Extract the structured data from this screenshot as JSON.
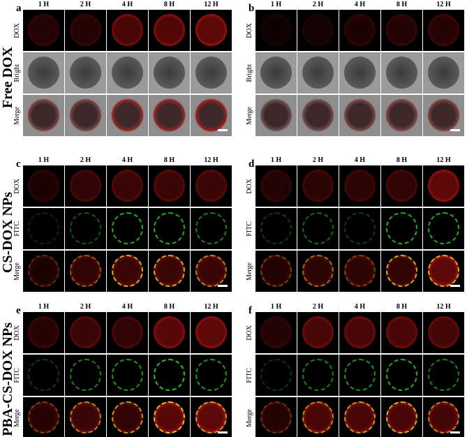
{
  "columns": [
    "1 H",
    "2 H",
    "4 H",
    "8 H",
    "12 H"
  ],
  "groups": [
    {
      "label": "Free DOX",
      "panels": [
        "a",
        "b"
      ]
    },
    {
      "label": "CS-DOX NPs",
      "panels": [
        "c",
        "d"
      ]
    },
    {
      "label": "PBA-CS-DOX NPs",
      "panels": [
        "e",
        "f"
      ]
    }
  ],
  "panels": [
    {
      "letter": "a",
      "rows": [
        "DOX",
        "Bright",
        "Merge"
      ],
      "scale_bar": true
    },
    {
      "letter": "b",
      "rows": [
        "DOX",
        "Bright",
        "Merge"
      ],
      "scale_bar": true
    },
    {
      "letter": "c",
      "rows": [
        "DOX",
        "FITC",
        "Merge"
      ],
      "scale_bar": true
    },
    {
      "letter": "d",
      "rows": [
        "DOX",
        "FITC",
        "Merge"
      ],
      "scale_bar": true
    },
    {
      "letter": "e",
      "rows": [
        "DOX",
        "FITC",
        "Merge"
      ],
      "scale_bar": true
    },
    {
      "letter": "f",
      "rows": [
        "DOX",
        "FITC",
        "Merge"
      ],
      "scale_bar": true
    }
  ],
  "colors": {
    "dox": "#e01818",
    "fitc": "#22d022",
    "merge_overlap": "#e8e020",
    "bright": "#808080"
  }
}
